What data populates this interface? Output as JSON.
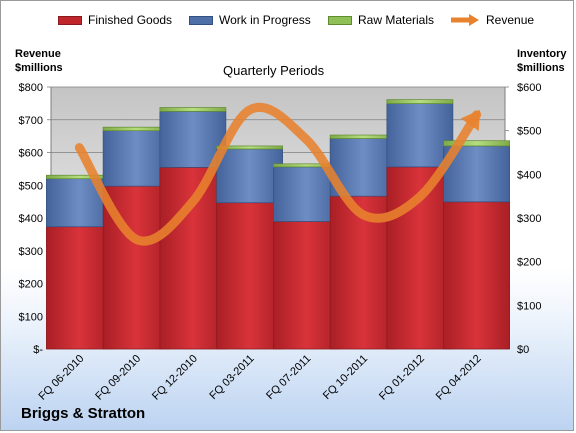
{
  "company": "Briggs & Stratton",
  "chart_data": {
    "type": "bar",
    "stacked": true,
    "subtitle": "Quarterly Periods",
    "y_left_label_line1": "Revenue",
    "y_left_label_line2": "$millions",
    "y_right_label_line1": "Inventory",
    "y_right_label_line2": "$millions",
    "categories": [
      "FQ 06-2010",
      "FQ 09-2010",
      "FQ 12-2010",
      "FQ 03-2011",
      "FQ 07-2011",
      "FQ 10-2011",
      "FQ 01-2012",
      "FQ 04-2012"
    ],
    "y_left_ticks": [
      "$-",
      "$100",
      "$200",
      "$300",
      "$400",
      "$500",
      "$600",
      "$700",
      "$800"
    ],
    "y_right_ticks": [
      "$0",
      "$100",
      "$200",
      "$300",
      "$400",
      "$500",
      "$600"
    ],
    "ylim_left": [
      0,
      800
    ],
    "ylim_right": [
      0,
      600
    ],
    "series": [
      {
        "name": "Finished Goods",
        "axis": "right",
        "color": "#c0272d",
        "values": [
          280,
          373,
          416,
          335,
          292,
          350,
          417,
          337
        ]
      },
      {
        "name": "Work in Progress",
        "axis": "right",
        "color": "#4f6fa8",
        "values": [
          110,
          127,
          128,
          123,
          125,
          132,
          145,
          128
        ]
      },
      {
        "name": "Raw Materials",
        "axis": "right",
        "color": "#8fbf57",
        "values": [
          8,
          8,
          9,
          7,
          7,
          8,
          9,
          12
        ]
      }
    ],
    "line_series": {
      "name": "Revenue",
      "axis": "left",
      "color": "#e8822e",
      "values": [
        615,
        335,
        450,
        730,
        640,
        410,
        465,
        715
      ]
    },
    "grid": true,
    "legend_position": "top"
  }
}
